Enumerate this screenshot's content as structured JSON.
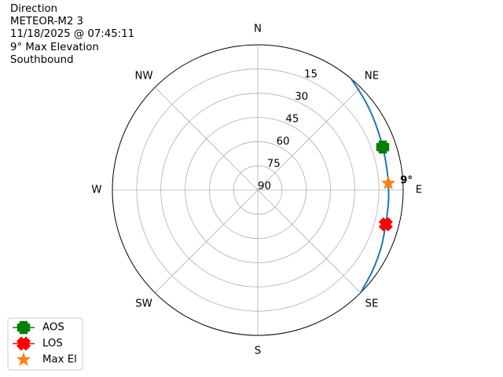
{
  "title_lines": [
    "Direction",
    "METEOR-M2 3",
    "11/18/2025 @ 07:45:11",
    "9° Max Elevation",
    "Southbound"
  ],
  "chart_data": {
    "type": "polar-line",
    "theta_direction": "clockwise",
    "theta_zero": "north",
    "compass_labels": [
      {
        "label": "N",
        "azimuth": 0
      },
      {
        "label": "NE",
        "azimuth": 45
      },
      {
        "label": "E",
        "azimuth": 90
      },
      {
        "label": "SE",
        "azimuth": 135
      },
      {
        "label": "S",
        "azimuth": 180
      },
      {
        "label": "SW",
        "azimuth": 225
      },
      {
        "label": "W",
        "azimuth": 270
      },
      {
        "label": "NW",
        "azimuth": 315
      }
    ],
    "elevation_ticks": [
      "15",
      "30",
      "45",
      "60",
      "75",
      "90"
    ],
    "elevation_tick_values": [
      15,
      30,
      45,
      60,
      75,
      90
    ],
    "elevation_range": [
      0,
      90
    ],
    "radial_axis": "inverted elevation (90 at center, 0 at edge)",
    "grid": true,
    "track": {
      "color": "#1f77b4",
      "azimuth": [
        40,
        50,
        60,
        71,
        80,
        87,
        95,
        105,
        115,
        125,
        135
      ],
      "elevation": [
        0,
        3.5,
        6.2,
        8.2,
        9.0,
        9.1,
        8.8,
        8.0,
        5.8,
        3.2,
        0
      ]
    },
    "markers": [
      {
        "name": "AOS",
        "azimuth": 71,
        "elevation": 8.2,
        "color": "#008000",
        "shape": "plus"
      },
      {
        "name": "LOS",
        "azimuth": 105,
        "elevation": 8.0,
        "color": "#ff0000",
        "shape": "x"
      },
      {
        "name": "Max El",
        "azimuth": 87,
        "elevation": 9.1,
        "color": "#ff7f0e",
        "shape": "star"
      }
    ],
    "max_el_annotation": "9°",
    "legend": {
      "placement": "bottom-left",
      "entries": [
        "AOS",
        "LOS",
        "Max El"
      ]
    }
  }
}
